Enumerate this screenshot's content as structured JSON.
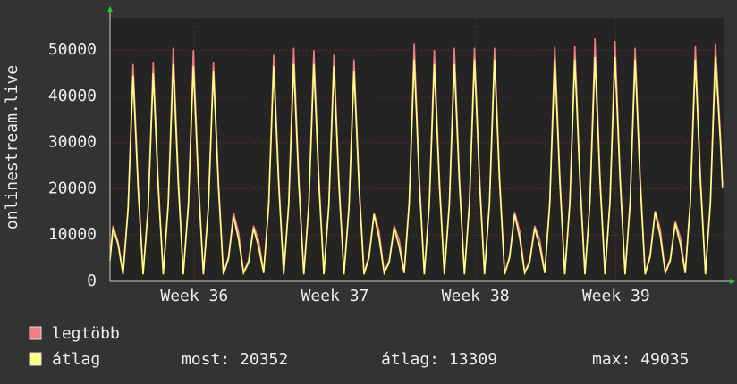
{
  "chart_data": {
    "type": "line",
    "y_label": "onlinestream.live",
    "xlim": [
      0,
      30.6
    ],
    "xticks": [
      {
        "value": 4.2,
        "label": "Week 36"
      },
      {
        "value": 11.2,
        "label": "Week 37"
      },
      {
        "value": 18.2,
        "label": "Week 38"
      },
      {
        "value": 25.2,
        "label": "Week 39"
      }
    ],
    "ylim": [
      0,
      57000
    ],
    "yticks": [
      0,
      10000,
      20000,
      30000,
      40000,
      50000
    ],
    "grid": true,
    "x": [
      0,
      0.15,
      0.4,
      0.65,
      0.9,
      1.15,
      1.4,
      1.65,
      1.9,
      2.15,
      2.4,
      2.65,
      2.9,
      3.15,
      3.4,
      3.65,
      3.9,
      4.15,
      4.4,
      4.65,
      4.9,
      5.15,
      5.4,
      5.65,
      5.9,
      6.15,
      6.4,
      6.65,
      6.9,
      7.15,
      7.4,
      7.65,
      7.9,
      8.15,
      8.4,
      8.65,
      8.9,
      9.15,
      9.4,
      9.65,
      9.9,
      10.15,
      10.4,
      10.65,
      10.9,
      11.15,
      11.4,
      11.65,
      11.9,
      12.15,
      12.4,
      12.65,
      12.9,
      13.15,
      13.4,
      13.65,
      13.9,
      14.15,
      14.4,
      14.65,
      14.9,
      15.15,
      15.4,
      15.65,
      15.9,
      16.15,
      16.4,
      16.65,
      16.9,
      17.15,
      17.4,
      17.65,
      17.9,
      18.15,
      18.4,
      18.65,
      18.9,
      19.15,
      19.4,
      19.65,
      19.9,
      20.15,
      20.4,
      20.65,
      20.9,
      21.15,
      21.4,
      21.65,
      21.9,
      22.15,
      22.4,
      22.65,
      22.9,
      23.15,
      23.4,
      23.65,
      23.9,
      24.15,
      24.4,
      24.65,
      24.9,
      25.15,
      25.4,
      25.65,
      25.9,
      26.15,
      26.4,
      26.65,
      26.9,
      27.15,
      27.4,
      27.65,
      27.9,
      28.15,
      28.4,
      28.65,
      28.9,
      29.15,
      29.4,
      29.65,
      29.9,
      30.15,
      30.4,
      30.5
    ],
    "series": [
      {
        "name": "legtöbb",
        "color": "#f07c84",
        "values": [
          5000,
          12000,
          8500,
          1700,
          16100,
          47000,
          21500,
          1700,
          16300,
          47500,
          21800,
          1700,
          17000,
          50500,
          22700,
          1700,
          16800,
          50000,
          22400,
          1700,
          16400,
          47500,
          22000,
          1700,
          5400,
          14800,
          10600,
          2000,
          4500,
          12000,
          9000,
          2000,
          16800,
          49000,
          22400,
          1700,
          17000,
          50500,
          22700,
          1700,
          17000,
          50000,
          22700,
          1700,
          16800,
          49000,
          22400,
          1700,
          16400,
          48000,
          22000,
          1700,
          5600,
          14800,
          10900,
          2000,
          4500,
          12000,
          9000,
          2000,
          17300,
          51500,
          23100,
          1700,
          17000,
          50000,
          22700,
          1700,
          17000,
          50500,
          22700,
          1700,
          17300,
          50500,
          23100,
          1700,
          17300,
          50500,
          23100,
          1700,
          5600,
          15000,
          10900,
          2000,
          4500,
          12000,
          9000,
          2000,
          17300,
          51000,
          23100,
          1700,
          17300,
          51000,
          23100,
          1700,
          17500,
          52500,
          23300,
          1700,
          17500,
          52000,
          23300,
          1700,
          17300,
          50500,
          23100,
          1700,
          5800,
          15200,
          11300,
          2000,
          4900,
          13000,
          9600,
          2000,
          17300,
          51000,
          23100,
          1700,
          17500,
          51500,
          31500,
          21000
        ]
      },
      {
        "name": "átlag",
        "color": "#ffff80",
        "values": [
          4500,
          11500,
          8000,
          1500,
          15600,
          44500,
          20000,
          1500,
          15800,
          45000,
          20300,
          1500,
          16500,
          47000,
          21200,
          1500,
          16300,
          46500,
          20900,
          1500,
          15900,
          45500,
          20500,
          1500,
          4900,
          14000,
          9100,
          1800,
          4000,
          11500,
          7500,
          1800,
          16300,
          46500,
          20900,
          1500,
          16500,
          47000,
          21200,
          1500,
          16500,
          47000,
          21200,
          1500,
          16300,
          46500,
          20900,
          1500,
          15900,
          45500,
          20500,
          1500,
          5100,
          14500,
          9400,
          1800,
          4000,
          11500,
          7500,
          1800,
          16800,
          48000,
          21600,
          1500,
          16500,
          47000,
          21200,
          1500,
          16500,
          47000,
          21200,
          1500,
          16800,
          48000,
          21600,
          1500,
          16800,
          48000,
          21600,
          1500,
          5100,
          14500,
          9400,
          1800,
          4000,
          11500,
          7500,
          1800,
          16800,
          48000,
          21600,
          1500,
          16800,
          48000,
          21600,
          1500,
          17000,
          48500,
          21800,
          1500,
          17000,
          48500,
          21800,
          1500,
          16800,
          48000,
          21600,
          1500,
          5300,
          15000,
          9800,
          1800,
          4400,
          12500,
          8100,
          1800,
          16800,
          48000,
          21600,
          1500,
          17000,
          48500,
          30000,
          20352
        ]
      }
    ],
    "stats": [
      "most: 20352",
      "átlag: 13309",
      "max: 49035"
    ]
  }
}
